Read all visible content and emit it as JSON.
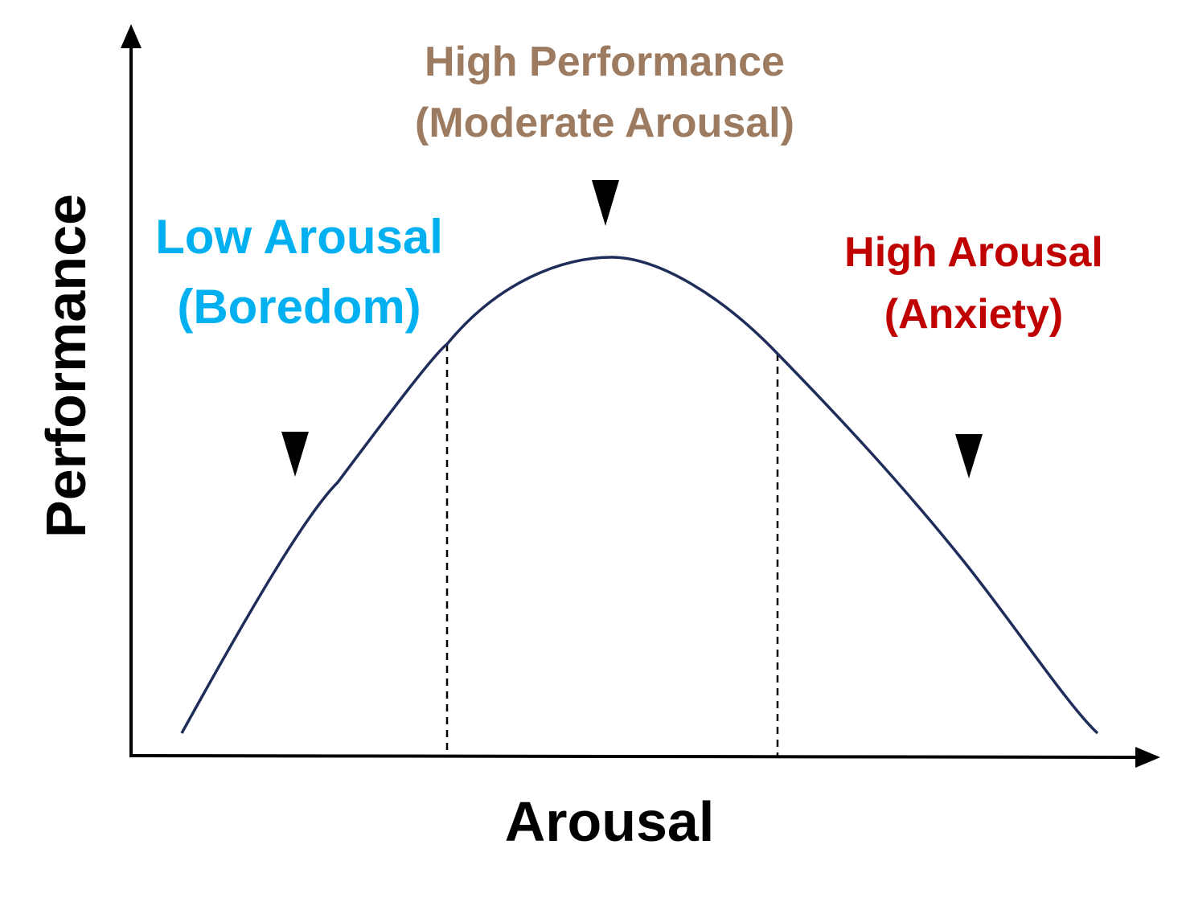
{
  "diagram": {
    "x_axis_label": "Arousal",
    "y_axis_label": "Performance",
    "zones": {
      "low": {
        "line1": "Low Arousal",
        "line2": "(Boredom)",
        "color": "#00B0F0"
      },
      "optimal": {
        "line1": "High Performance",
        "line2": "(Moderate Arousal)",
        "color": "#9C7B60"
      },
      "high": {
        "line1": "High Arousal",
        "line2": "(Anxiety)",
        "color": "#C00000"
      }
    },
    "curve_color": "#1F2D5A",
    "axis_color": "#000000"
  }
}
